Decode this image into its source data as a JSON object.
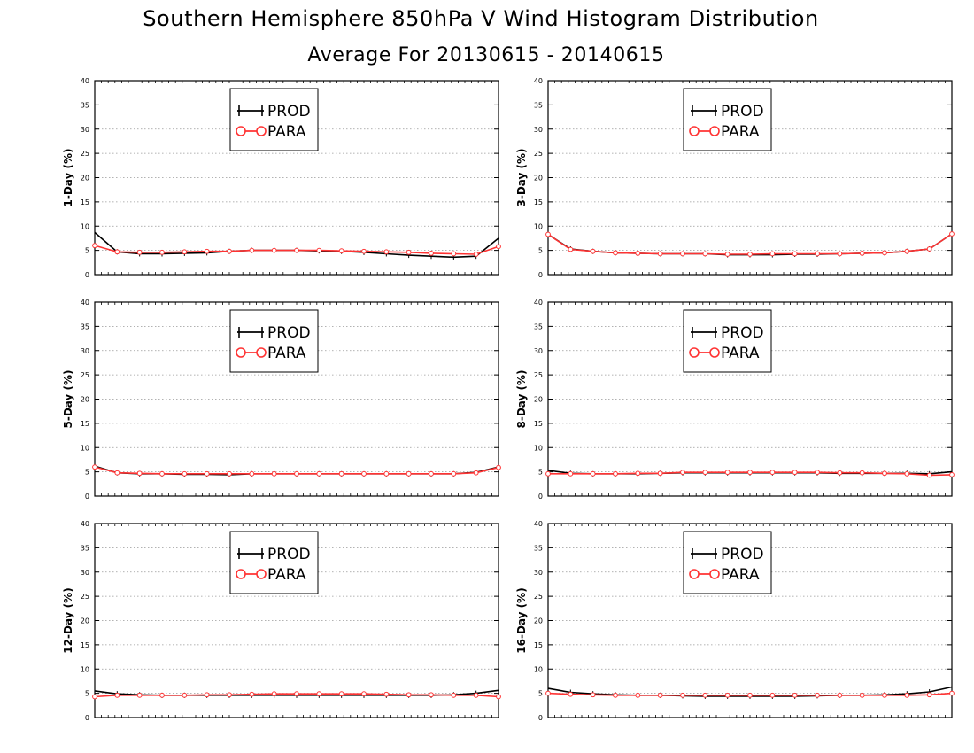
{
  "title": "Southern Hemisphere 850hPa V Wind Histogram Distribution",
  "subtitle": "Average For 20130615 - 20140615",
  "colors": {
    "prod": "#000000",
    "para": "#ff3333",
    "grid": "#999999"
  },
  "chart_data": [
    {
      "type": "line",
      "ylabel": "1-Day (%)",
      "ylim": [
        0,
        40
      ],
      "yticks": [
        "0",
        "5",
        "10",
        "15",
        "20",
        "25",
        "30",
        "35",
        "40"
      ],
      "grid": true,
      "legend_position": "top-left",
      "series": [
        {
          "name": "PROD",
          "values": [
            8.7,
            4.7,
            4.3,
            4.3,
            4.4,
            4.5,
            4.8,
            5.0,
            5.0,
            5.0,
            4.9,
            4.8,
            4.6,
            4.3,
            4.0,
            3.8,
            3.6,
            3.8,
            7.5
          ]
        },
        {
          "name": "PARA",
          "values": [
            6.0,
            4.7,
            4.6,
            4.6,
            4.7,
            4.8,
            4.8,
            5.0,
            5.0,
            5.0,
            5.0,
            4.9,
            4.8,
            4.7,
            4.6,
            4.4,
            4.3,
            4.2,
            5.8
          ]
        }
      ]
    },
    {
      "type": "line",
      "ylabel": "3-Day (%)",
      "ylim": [
        0,
        40
      ],
      "yticks": [
        "0",
        "5",
        "10",
        "15",
        "20",
        "25",
        "30",
        "35",
        "40"
      ],
      "grid": true,
      "legend_position": "top-left",
      "series": [
        {
          "name": "PROD",
          "values": [
            8.3,
            5.3,
            4.8,
            4.5,
            4.4,
            4.3,
            4.3,
            4.3,
            4.1,
            4.1,
            4.1,
            4.2,
            4.2,
            4.3,
            4.4,
            4.5,
            4.8,
            5.3,
            8.4
          ]
        },
        {
          "name": "PARA",
          "values": [
            8.3,
            5.2,
            4.8,
            4.5,
            4.4,
            4.3,
            4.3,
            4.3,
            4.2,
            4.2,
            4.3,
            4.3,
            4.3,
            4.3,
            4.4,
            4.5,
            4.8,
            5.3,
            8.4
          ]
        }
      ]
    },
    {
      "type": "line",
      "ylabel": "5-Day (%)",
      "ylim": [
        0,
        40
      ],
      "yticks": [
        "0",
        "5",
        "10",
        "15",
        "20",
        "25",
        "30",
        "35",
        "40"
      ],
      "grid": true,
      "legend_position": "top-left",
      "series": [
        {
          "name": "PROD",
          "values": [
            6.2,
            4.8,
            4.6,
            4.6,
            4.5,
            4.5,
            4.4,
            4.6,
            4.6,
            4.6,
            4.6,
            4.6,
            4.6,
            4.6,
            4.6,
            4.6,
            4.6,
            4.9,
            6.0
          ]
        },
        {
          "name": "PARA",
          "values": [
            6.0,
            4.8,
            4.7,
            4.6,
            4.6,
            4.6,
            4.6,
            4.6,
            4.6,
            4.6,
            4.6,
            4.6,
            4.6,
            4.6,
            4.6,
            4.6,
            4.6,
            4.8,
            5.9
          ]
        }
      ]
    },
    {
      "type": "line",
      "ylabel": "8-Day (%)",
      "ylim": [
        0,
        40
      ],
      "yticks": [
        "0",
        "5",
        "10",
        "15",
        "20",
        "25",
        "30",
        "35",
        "40"
      ],
      "grid": true,
      "legend_position": "top-left",
      "series": [
        {
          "name": "PROD",
          "values": [
            5.3,
            4.7,
            4.6,
            4.6,
            4.6,
            4.7,
            4.8,
            4.8,
            4.8,
            4.8,
            4.8,
            4.8,
            4.8,
            4.7,
            4.7,
            4.7,
            4.7,
            4.6,
            5.0
          ]
        },
        {
          "name": "PARA",
          "values": [
            4.6,
            4.6,
            4.6,
            4.6,
            4.7,
            4.7,
            4.9,
            4.9,
            4.9,
            4.9,
            4.9,
            4.9,
            4.9,
            4.8,
            4.8,
            4.7,
            4.6,
            4.3,
            4.4
          ]
        }
      ]
    },
    {
      "type": "line",
      "ylabel": "12-Day (%)",
      "ylim": [
        0,
        40
      ],
      "yticks": [
        "0",
        "5",
        "10",
        "15",
        "20",
        "25",
        "30",
        "35",
        "40"
      ],
      "grid": true,
      "legend_position": "top-left",
      "series": [
        {
          "name": "PROD",
          "values": [
            5.5,
            4.9,
            4.7,
            4.6,
            4.6,
            4.6,
            4.6,
            4.6,
            4.6,
            4.6,
            4.6,
            4.6,
            4.6,
            4.6,
            4.6,
            4.6,
            4.7,
            5.0,
            5.6
          ]
        },
        {
          "name": "PARA",
          "values": [
            4.3,
            4.6,
            4.6,
            4.6,
            4.6,
            4.7,
            4.7,
            4.8,
            4.9,
            4.9,
            4.9,
            4.9,
            4.9,
            4.8,
            4.7,
            4.7,
            4.6,
            4.6,
            4.3
          ]
        }
      ]
    },
    {
      "type": "line",
      "ylabel": "16-Day (%)",
      "ylim": [
        0,
        40
      ],
      "yticks": [
        "0",
        "5",
        "10",
        "15",
        "20",
        "25",
        "30",
        "35",
        "40"
      ],
      "grid": true,
      "legend_position": "top-left",
      "series": [
        {
          "name": "PROD",
          "values": [
            6.0,
            5.2,
            4.9,
            4.7,
            4.6,
            4.6,
            4.5,
            4.4,
            4.4,
            4.4,
            4.4,
            4.4,
            4.5,
            4.6,
            4.6,
            4.7,
            4.9,
            5.3,
            6.3
          ]
        },
        {
          "name": "PARA",
          "values": [
            5.0,
            4.8,
            4.7,
            4.6,
            4.6,
            4.6,
            4.6,
            4.6,
            4.6,
            4.6,
            4.6,
            4.6,
            4.6,
            4.6,
            4.6,
            4.6,
            4.6,
            4.7,
            5.0
          ]
        }
      ]
    }
  ]
}
